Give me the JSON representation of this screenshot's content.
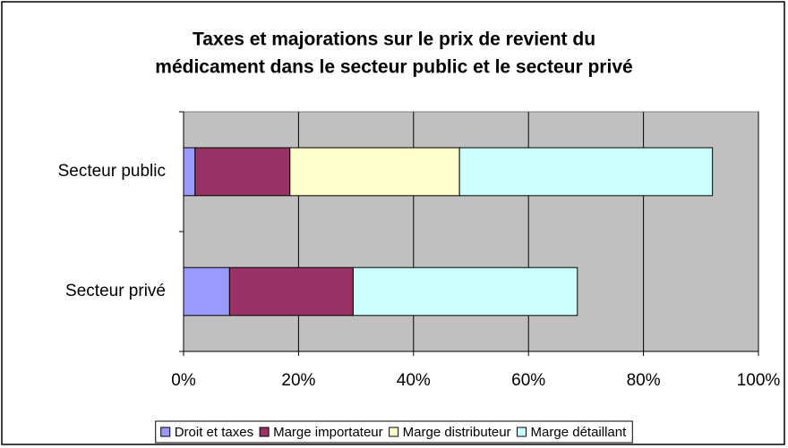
{
  "chart_data": {
    "type": "stacked_barh",
    "title": [
      "Taxes et majorations sur le prix de revient du",
      "médicament dans le secteur public et le secteur privé"
    ],
    "categories": [
      "Secteur public",
      "Secteur privé"
    ],
    "series": [
      {
        "name": "Droit et taxes",
        "color": "#9999ff",
        "values": [
          2,
          8
        ]
      },
      {
        "name": "Marge importateur",
        "color": "#993366",
        "values": [
          16.5,
          21.5
        ]
      },
      {
        "name": "Marge distributeur",
        "color": "#ffffcc",
        "values": [
          29.5,
          0
        ]
      },
      {
        "name": "Marge détaillant",
        "color": "#ccffff",
        "values": [
          44,
          39
        ]
      }
    ],
    "xlim": [
      0,
      100
    ],
    "xticks": [
      {
        "value": 0,
        "label": "0%"
      },
      {
        "value": 20,
        "label": "20%"
      },
      {
        "value": 40,
        "label": "40%"
      },
      {
        "value": 60,
        "label": "60%"
      },
      {
        "value": 80,
        "label": "80%"
      },
      {
        "value": 100,
        "label": "100%"
      }
    ],
    "grid": true,
    "legend": "bottom"
  }
}
